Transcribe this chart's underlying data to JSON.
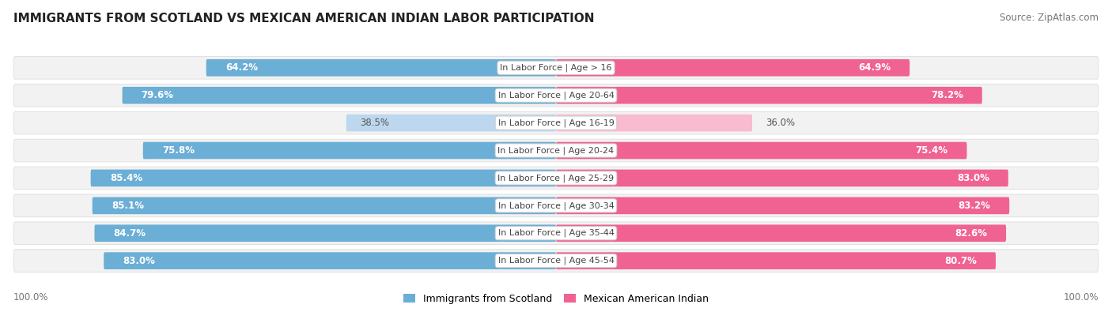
{
  "title": "IMMIGRANTS FROM SCOTLAND VS MEXICAN AMERICAN INDIAN LABOR PARTICIPATION",
  "source": "Source: ZipAtlas.com",
  "categories": [
    "In Labor Force | Age > 16",
    "In Labor Force | Age 20-64",
    "In Labor Force | Age 16-19",
    "In Labor Force | Age 20-24",
    "In Labor Force | Age 25-29",
    "In Labor Force | Age 30-34",
    "In Labor Force | Age 35-44",
    "In Labor Force | Age 45-54"
  ],
  "scotland_values": [
    64.2,
    79.6,
    38.5,
    75.8,
    85.4,
    85.1,
    84.7,
    83.0
  ],
  "mexican_values": [
    64.9,
    78.2,
    36.0,
    75.4,
    83.0,
    83.2,
    82.6,
    80.7
  ],
  "scotland_color": "#6BAED6",
  "scotland_color_light": "#BDD7EE",
  "mexican_color": "#F06292",
  "mexican_color_light": "#F8BBD0",
  "row_bg_color": "#F2F2F2",
  "row_border_color": "#DDDDDD",
  "max_value": 100.0,
  "label_fontsize": 8.5,
  "category_fontsize": 8.0,
  "title_fontsize": 11,
  "legend_fontsize": 9,
  "footer_fontsize": 8.5,
  "light_threshold": 50.0
}
